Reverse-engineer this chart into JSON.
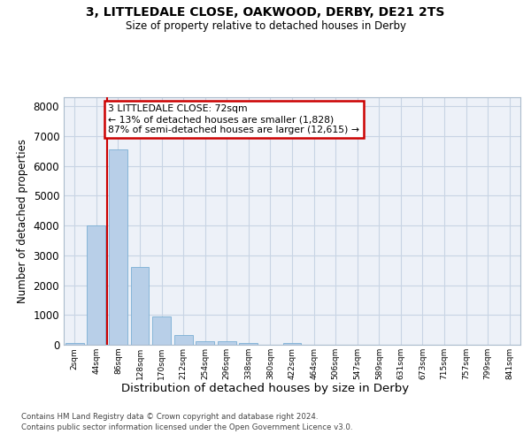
{
  "title1": "3, LITTLEDALE CLOSE, OAKWOOD, DERBY, DE21 2TS",
  "title2": "Size of property relative to detached houses in Derby",
  "xlabel": "Distribution of detached houses by size in Derby",
  "ylabel": "Number of detached properties",
  "bin_labels": [
    "2sqm",
    "44sqm",
    "86sqm",
    "128sqm",
    "170sqm",
    "212sqm",
    "254sqm",
    "296sqm",
    "338sqm",
    "380sqm",
    "422sqm",
    "464sqm",
    "506sqm",
    "547sqm",
    "589sqm",
    "631sqm",
    "673sqm",
    "715sqm",
    "757sqm",
    "799sqm",
    "841sqm"
  ],
  "bar_values": [
    60,
    4000,
    6550,
    2600,
    950,
    320,
    130,
    110,
    70,
    0,
    70,
    0,
    0,
    0,
    0,
    0,
    0,
    0,
    0,
    0,
    0
  ],
  "bar_color": "#b8cfe8",
  "bar_edgecolor": "#7aafd4",
  "grid_color": "#c8d4e4",
  "bg_color": "#edf1f8",
  "vline_color": "#cc0000",
  "vline_x": 1.5,
  "annotation_text": "3 LITTLEDALE CLOSE: 72sqm\n← 13% of detached houses are smaller (1,828)\n87% of semi-detached houses are larger (12,615) →",
  "annotation_box_edgecolor": "#cc0000",
  "ylim": [
    0,
    8300
  ],
  "yticks": [
    0,
    1000,
    2000,
    3000,
    4000,
    5000,
    6000,
    7000,
    8000
  ],
  "footer1": "Contains HM Land Registry data © Crown copyright and database right 2024.",
  "footer2": "Contains public sector information licensed under the Open Government Licence v3.0."
}
